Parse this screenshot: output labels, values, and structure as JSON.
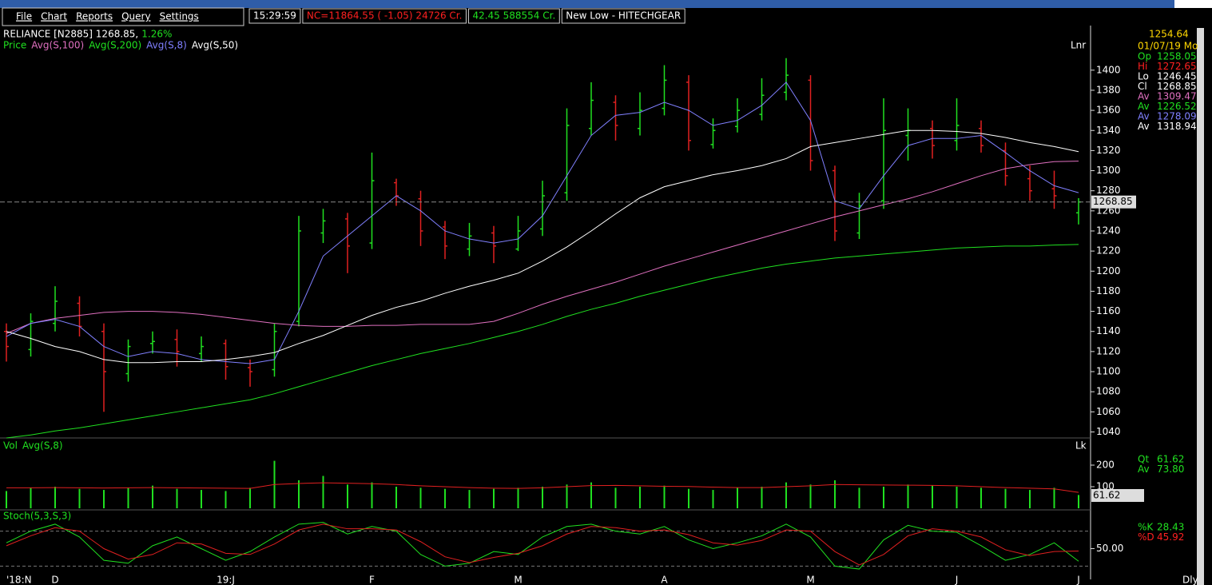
{
  "menu": [
    "File",
    "Chart",
    "Reports",
    "Query",
    "Settings"
  ],
  "ticker": [
    {
      "text": "15:29:59",
      "color": "#ffffff"
    },
    {
      "text": "NC=11864.55 (  -1.05) 24726 Cr.",
      "color": "#ff2020"
    },
    {
      "text": "42.45 588554 Cr.",
      "color": "#20e020"
    },
    {
      "text": "New Low - HITECHGEAR",
      "color": "#ffffff"
    }
  ],
  "info": {
    "price_head": [
      "1254.64",
      "01/07/19 Mo"
    ],
    "price_rows": [
      {
        "label": "Op",
        "value": "1258.05",
        "color": "#20e020"
      },
      {
        "label": "Hi",
        "value": "1272.65",
        "color": "#ff2020"
      },
      {
        "label": "Lo",
        "value": "1246.45",
        "color": "#ffffff"
      },
      {
        "label": "Cl",
        "value": "1268.85",
        "color": "#ffffff"
      },
      {
        "label": "Av",
        "value": "1309.47",
        "color": "#e070c0"
      },
      {
        "label": "Av",
        "value": "1226.52",
        "color": "#20e020"
      },
      {
        "label": "Av",
        "value": "1278.09",
        "color": "#8080ff"
      },
      {
        "label": "Av",
        "value": "1318.94",
        "color": "#ffffff"
      }
    ],
    "vol_rows": [
      {
        "label": "Qt",
        "value": "61.62",
        "color": "#20e020"
      },
      {
        "label": "Av",
        "value": "73.80",
        "color": "#20e020"
      }
    ],
    "stoch_rows": [
      {
        "label": "%K",
        "value": "28.43",
        "color": "#20e020"
      },
      {
        "label": "%D",
        "value": "45.92",
        "color": "#ff2020"
      }
    ],
    "frequency": "Dly"
  },
  "chart_data": [
    {
      "type": "ohlc",
      "title": "RELIANCE [N2885] 1268.85,",
      "change": "1.26%",
      "scale_label": "Lnr",
      "legend_prefix": "Price",
      "x": [
        "'18:N",
        null,
        "D",
        null,
        null,
        null,
        null,
        null,
        null,
        "19:J",
        null,
        null,
        null,
        null,
        null,
        "F",
        null,
        null,
        null,
        null,
        null,
        "M",
        null,
        null,
        null,
        null,
        null,
        "A",
        null,
        null,
        null,
        null,
        null,
        "M",
        null,
        null,
        null,
        null,
        null,
        "J",
        null,
        null,
        null,
        null,
        "J"
      ],
      "open": [
        1140,
        1122,
        1148,
        1168,
        1140,
        1098,
        1128,
        1132,
        1118,
        1128,
        1104,
        1102,
        1150,
        1238,
        1252,
        1228,
        1288,
        1272,
        1244,
        1222,
        1238,
        1222,
        1242,
        1278,
        1342,
        1368,
        1342,
        1362,
        1388,
        1326,
        1344,
        1356,
        1378,
        1390,
        1300,
        1238,
        1270,
        1335,
        1342,
        1330,
        1342,
        1320,
        1292,
        1282,
        1258.05
      ],
      "high": [
        1148,
        1158,
        1185,
        1175,
        1148,
        1132,
        1140,
        1142,
        1135,
        1132,
        1112,
        1148,
        1255,
        1262,
        1258,
        1318,
        1292,
        1280,
        1250,
        1248,
        1245,
        1255,
        1290,
        1362,
        1388,
        1375,
        1378,
        1405,
        1395,
        1352,
        1372,
        1392,
        1412,
        1395,
        1305,
        1278,
        1372,
        1362,
        1350,
        1372,
        1350,
        1328,
        1305,
        1300,
        1272.65
      ],
      "low": [
        1110,
        1115,
        1140,
        1135,
        1060,
        1090,
        1118,
        1105,
        1110,
        1092,
        1085,
        1095,
        1145,
        1228,
        1198,
        1222,
        1265,
        1225,
        1212,
        1215,
        1208,
        1220,
        1235,
        1270,
        1335,
        1330,
        1335,
        1355,
        1320,
        1322,
        1338,
        1350,
        1370,
        1300,
        1230,
        1232,
        1262,
        1310,
        1312,
        1320,
        1318,
        1285,
        1270,
        1262,
        1246.45
      ],
      "close": [
        1125,
        1150,
        1170,
        1145,
        1100,
        1125,
        1130,
        1120,
        1125,
        1105,
        1100,
        1140,
        1240,
        1250,
        1225,
        1290,
        1275,
        1240,
        1225,
        1235,
        1225,
        1240,
        1275,
        1345,
        1370,
        1345,
        1360,
        1390,
        1330,
        1340,
        1360,
        1375,
        1395,
        1310,
        1240,
        1265,
        1340,
        1340,
        1325,
        1345,
        1325,
        1295,
        1280,
        1275,
        1268.85
      ],
      "up_color": "#20e020",
      "down_color": "#e02020",
      "series": [
        {
          "name": "Avg(S,100)",
          "color": "#e070c0",
          "values": [
            1138,
            1148,
            1153,
            1156,
            1159,
            1160,
            1160,
            1159,
            1157,
            1154,
            1151,
            1148,
            1146,
            1145,
            1145,
            1146,
            1146,
            1147,
            1147,
            1147,
            1150,
            1158,
            1167,
            1175,
            1182,
            1189,
            1197,
            1205,
            1212,
            1219,
            1226,
            1233,
            1240,
            1247,
            1254,
            1260,
            1266,
            1272,
            1279,
            1287,
            1295,
            1302,
            1306,
            1309,
            1309.47
          ]
        },
        {
          "name": "Avg(S,200)",
          "color": "#20e020",
          "values": [
            1034,
            1037,
            1041,
            1044,
            1048,
            1052,
            1056,
            1060,
            1064,
            1068,
            1072,
            1078,
            1085,
            1092,
            1099,
            1106,
            1112,
            1118,
            1123,
            1128,
            1134,
            1140,
            1147,
            1155,
            1162,
            1168,
            1175,
            1181,
            1187,
            1193,
            1198,
            1203,
            1207,
            1210,
            1213,
            1215,
            1217,
            1219,
            1221,
            1223,
            1224,
            1225,
            1225,
            1226,
            1226.52
          ]
        },
        {
          "name": "Avg(S,8)",
          "color": "#8080ff",
          "values": [
            1135,
            1148,
            1152,
            1145,
            1125,
            1115,
            1120,
            1118,
            1112,
            1110,
            1108,
            1112,
            1160,
            1215,
            1235,
            1255,
            1275,
            1260,
            1240,
            1232,
            1228,
            1232,
            1255,
            1295,
            1335,
            1355,
            1358,
            1368,
            1360,
            1345,
            1350,
            1365,
            1388,
            1350,
            1270,
            1262,
            1295,
            1325,
            1332,
            1332,
            1335,
            1318,
            1300,
            1285,
            1278.09
          ]
        },
        {
          "name": "Avg(S,50)",
          "color": "#ffffff",
          "values": [
            1140,
            1133,
            1125,
            1120,
            1112,
            1109,
            1109,
            1110,
            1110,
            1112,
            1115,
            1119,
            1128,
            1136,
            1146,
            1156,
            1164,
            1170,
            1178,
            1185,
            1191,
            1198,
            1210,
            1224,
            1240,
            1257,
            1273,
            1284,
            1290,
            1296,
            1300,
            1305,
            1312,
            1324,
            1328,
            1332,
            1336,
            1340,
            1340,
            1339,
            1337,
            1333,
            1328,
            1324,
            1318.94
          ]
        }
      ],
      "ylim": [
        1034,
        1442
      ],
      "yticks": [
        1040,
        1060,
        1080,
        1100,
        1120,
        1140,
        1160,
        1180,
        1200,
        1220,
        1240,
        1260,
        1280,
        1300,
        1320,
        1340,
        1360,
        1380,
        1400
      ]
    },
    {
      "type": "volume",
      "title": "Vol",
      "scale_label": "Lk",
      "values": [
        80,
        95,
        100,
        90,
        85,
        95,
        105,
        90,
        85,
        80,
        95,
        220,
        130,
        150,
        110,
        120,
        100,
        95,
        90,
        85,
        90,
        95,
        100,
        110,
        120,
        95,
        100,
        105,
        90,
        85,
        95,
        100,
        120,
        110,
        130,
        95,
        100,
        110,
        105,
        100,
        95,
        90,
        85,
        95,
        61.62
      ],
      "color": "#20e020",
      "series": [
        {
          "name": "Avg(S,8)",
          "color": "#e02020",
          "values": [
            95,
            95,
            96,
            95,
            94,
            95,
            96,
            95,
            94,
            93,
            92,
            110,
            115,
            118,
            116,
            114,
            110,
            104,
            100,
            96,
            93,
            92,
            95,
            100,
            105,
            106,
            104,
            102,
            101,
            98,
            96,
            96,
            100,
            104,
            110,
            109,
            108,
            107,
            106,
            104,
            100,
            96,
            93,
            90,
            73.8
          ]
        }
      ],
      "ylim": [
        0,
        250
      ],
      "yticks": [
        100,
        200
      ]
    },
    {
      "type": "stoch",
      "title": "Stoch(5,3,S,3)",
      "series": [
        {
          "name": "%K",
          "color": "#20e020",
          "values": [
            60,
            80,
            92,
            70,
            30,
            25,
            55,
            70,
            50,
            30,
            45,
            70,
            92,
            95,
            75,
            88,
            80,
            40,
            20,
            25,
            45,
            40,
            70,
            88,
            92,
            80,
            75,
            88,
            65,
            50,
            60,
            72,
            92,
            70,
            20,
            15,
            65,
            90,
            80,
            78,
            55,
            30,
            40,
            60,
            28.43
          ]
        },
        {
          "name": "%D",
          "color": "#e02020",
          "values": [
            55,
            72,
            86,
            80,
            50,
            32,
            40,
            60,
            58,
            42,
            40,
            58,
            82,
            92,
            84,
            84,
            82,
            62,
            36,
            26,
            35,
            42,
            55,
            75,
            88,
            86,
            80,
            82,
            74,
            60,
            56,
            64,
            82,
            80,
            45,
            22,
            40,
            72,
            84,
            80,
            70,
            48,
            38,
            45,
            45.92
          ]
        }
      ],
      "levels": [
        20,
        80
      ],
      "ylim": [
        0,
        100
      ],
      "yticks": [
        {
          "value": 50,
          "label": "50.00"
        }
      ]
    }
  ]
}
